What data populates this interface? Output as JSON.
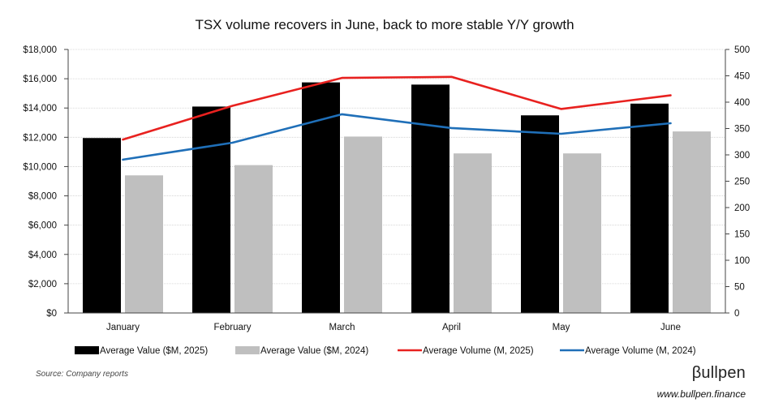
{
  "chart_data": {
    "type": "bar",
    "title": "TSX volume recovers in June, back to more stable Y/Y growth",
    "categories": [
      "January",
      "February",
      "March",
      "April",
      "May",
      "June"
    ],
    "y_left": {
      "ticks": [
        "$0",
        "$2,000",
        "$4,000",
        "$6,000",
        "$8,000",
        "$10,000",
        "$12,000",
        "$14,000",
        "$16,000",
        "$18,000"
      ],
      "range": [
        0,
        18000
      ]
    },
    "y_right": {
      "ticks": [
        "0",
        "50",
        "100",
        "150",
        "200",
        "250",
        "300",
        "350",
        "400",
        "450",
        "500"
      ],
      "range": [
        0,
        500
      ]
    },
    "series": [
      {
        "name": "Average Value ($M, 2025)",
        "type": "bar",
        "axis": "left",
        "color": "#000000",
        "values": [
          11950,
          14100,
          15750,
          15600,
          13500,
          14300
        ]
      },
      {
        "name": "Average Value ($M, 2024)",
        "type": "bar",
        "axis": "left",
        "color": "#bfbfbf",
        "values": [
          9400,
          10100,
          12050,
          10900,
          10900,
          12400
        ]
      },
      {
        "name": "Average Volume (M, 2025)",
        "type": "line",
        "axis": "right",
        "color": "#e8211f",
        "values": [
          329,
          393,
          446,
          448,
          387,
          413
        ]
      },
      {
        "name": "Average Volume (M, 2024)",
        "type": "line",
        "axis": "right",
        "color": "#1f6fb8",
        "values": [
          291,
          323,
          377,
          351,
          340,
          360
        ]
      }
    ],
    "grid": true,
    "legend_position": "bottom"
  },
  "footer": {
    "source": "Source: Company reports",
    "brand": "βullpen",
    "url": "www.bullpen.finance"
  }
}
